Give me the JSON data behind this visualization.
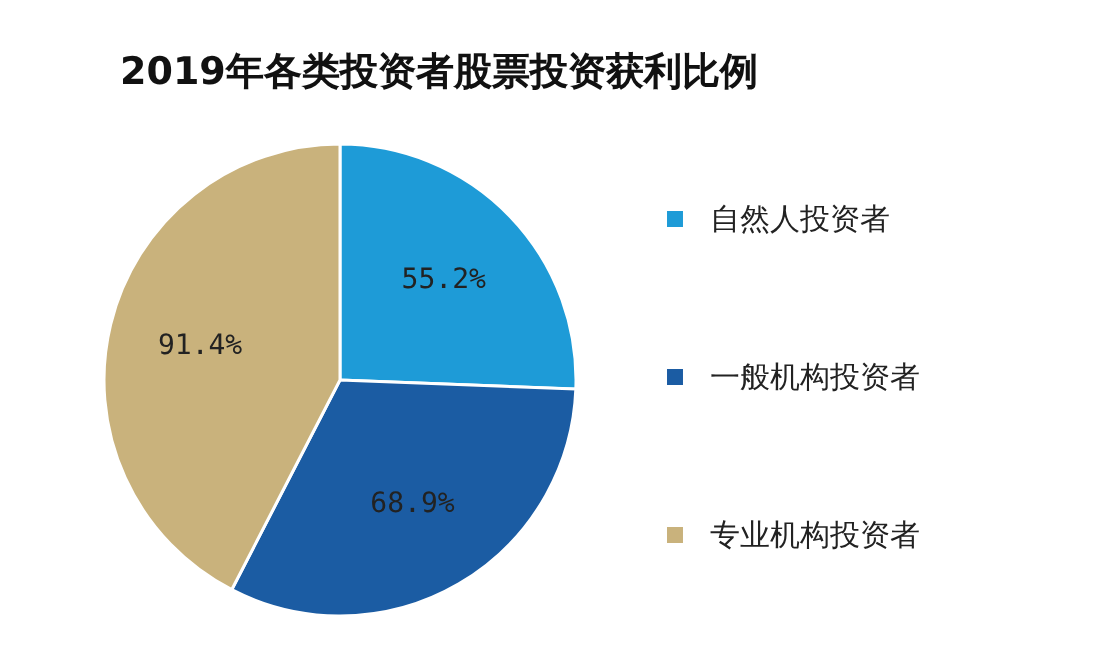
{
  "chart_data": {
    "type": "pie",
    "title": "2019年各类投资者股票投资获利比例",
    "categories": [
      "自然人投资者",
      "一般机构投资者",
      "专业机构投资者"
    ],
    "values": [
      55.2,
      68.9,
      91.4
    ],
    "colors": [
      "#1e9bd7",
      "#1b5ca3",
      "#c9b27c"
    ],
    "value_labels": [
      "55.2%",
      "68.9%",
      "91.4%"
    ],
    "legend": "right"
  }
}
